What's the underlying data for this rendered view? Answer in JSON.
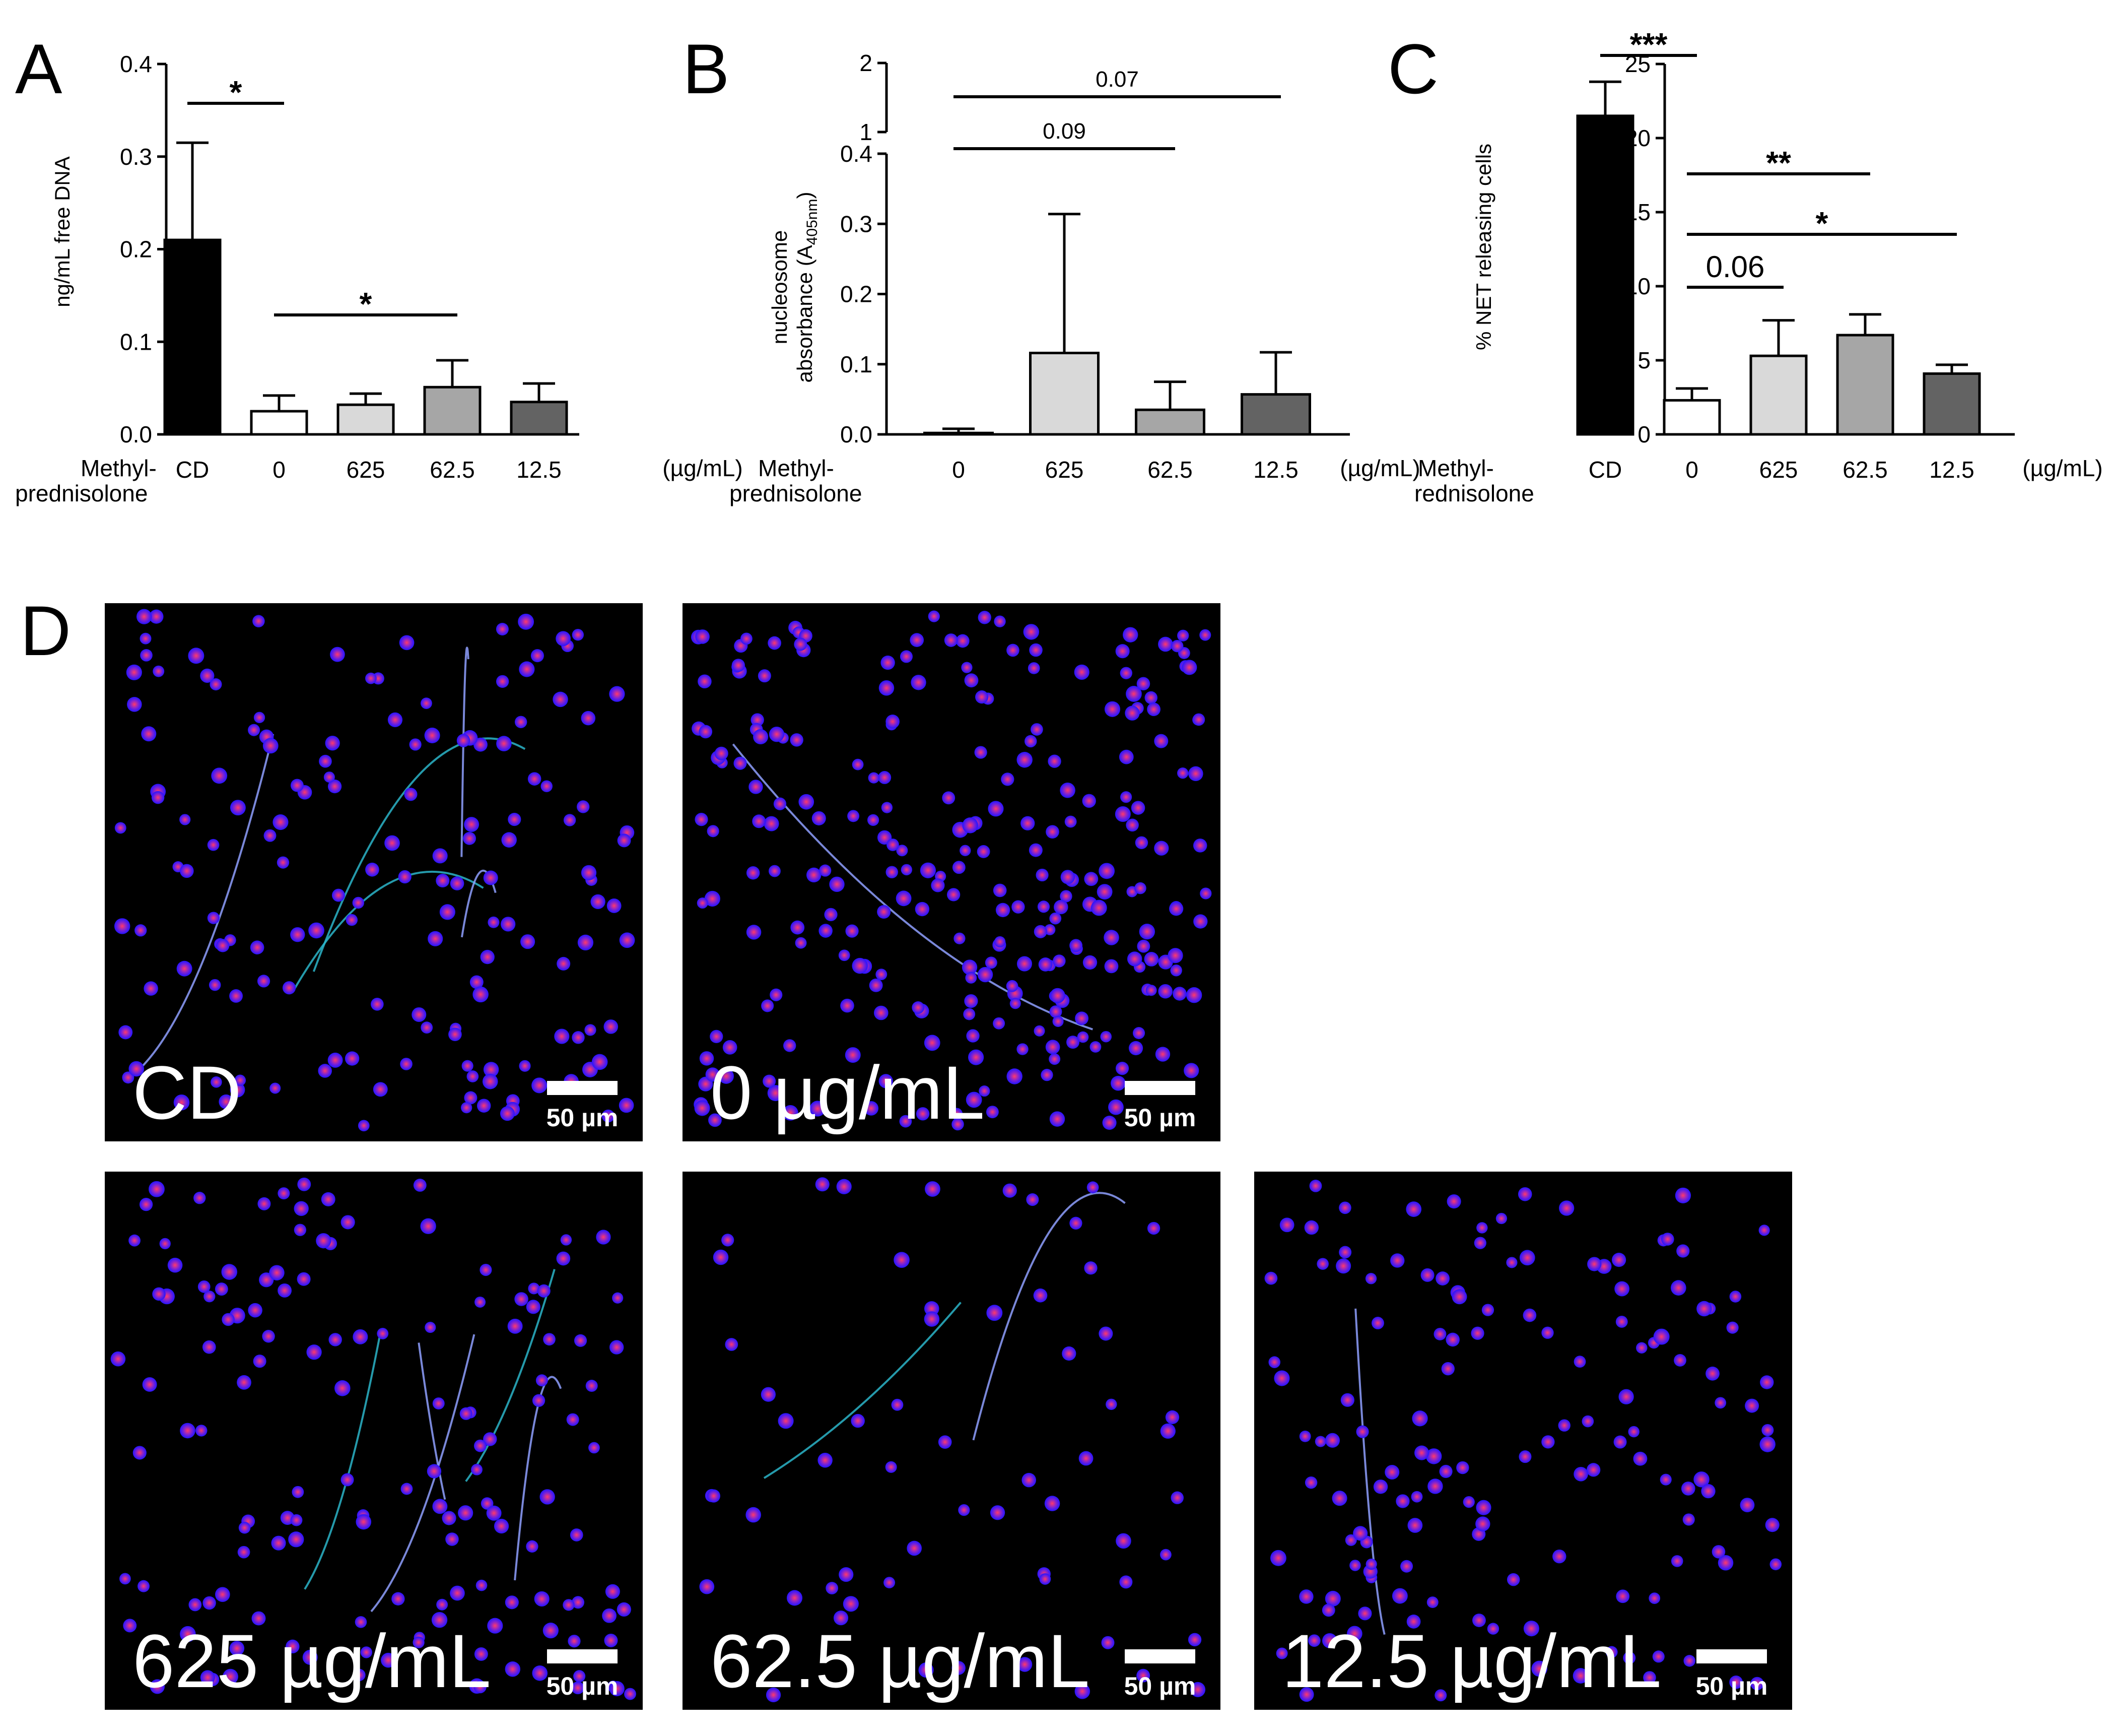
{
  "figure": {
    "panel_letters": [
      "A",
      "B",
      "C",
      "D"
    ],
    "row_label_line1": "Methyl-",
    "row_label_line2_ab": "prednisolone",
    "row_label_line2_c": "rednisolone",
    "unit_label": "(µg/mL)"
  },
  "colors": {
    "CD": "#000000",
    "0": "#ffffff",
    "625": "#d9d9d9",
    "62.5": "#a6a6a6",
    "12.5": "#636363"
  },
  "chart_data": [
    {
      "panel": "A",
      "type": "bar",
      "categories": [
        "CD",
        "0",
        "625",
        "62.5",
        "12.5"
      ],
      "values": [
        0.21,
        0.025,
        0.032,
        0.051,
        0.035
      ],
      "errors": [
        0.105,
        0.017,
        0.012,
        0.029,
        0.02
      ],
      "ylabel": "ng/mL free DNA",
      "ylim": [
        0,
        0.4
      ],
      "yticks": [
        "0.0",
        "0.1",
        "0.2",
        "0.3",
        "0.4"
      ],
      "annotations": [
        {
          "from": "CD",
          "to": "0",
          "label": "*"
        },
        {
          "from": "0",
          "to": "62.5",
          "label": "*"
        }
      ]
    },
    {
      "panel": "B",
      "type": "bar",
      "categories": [
        "0",
        "625",
        "62.5",
        "12.5"
      ],
      "values": [
        0.002,
        0.116,
        0.035,
        0.057
      ],
      "errors": [
        0.006,
        0.198,
        0.04,
        0.06
      ],
      "ylabel_line1": "nucleosome",
      "ylabel_line2": "absorbance (A",
      "ylabel_sub": "405nm",
      "ylabel_end": ")",
      "ylim": [
        0,
        0.4
      ],
      "y_break_upper": [
        1,
        2
      ],
      "yticks": [
        "0.0",
        "0.1",
        "0.2",
        "0.3",
        "0.4"
      ],
      "yticks_upper": [
        "1",
        "2"
      ],
      "annotations": [
        {
          "from": "0",
          "to": "62.5",
          "label": "0.09"
        },
        {
          "from": "0",
          "to": "12.5",
          "label": "0.07"
        }
      ]
    },
    {
      "panel": "C",
      "type": "bar",
      "categories": [
        "CD",
        "0",
        "625",
        "62.5",
        "12.5"
      ],
      "values": [
        21.5,
        2.3,
        5.3,
        6.7,
        4.1
      ],
      "errors": [
        2.3,
        0.8,
        2.4,
        1.4,
        0.6
      ],
      "ylabel": "% NET releasing cells",
      "ylim": [
        0,
        25
      ],
      "yticks": [
        "0",
        "5",
        "10",
        "15",
        "20",
        "25"
      ],
      "annotations": [
        {
          "from": "CD",
          "to": "0",
          "label": "***"
        },
        {
          "from": "0",
          "to": "62.5",
          "label": "**"
        },
        {
          "from": "0",
          "to": "12.5",
          "label": "*"
        },
        {
          "from": "0",
          "to": "625",
          "label": "0.06"
        }
      ]
    }
  ],
  "micrographs": [
    {
      "label": "CD",
      "scale": "50 µm"
    },
    {
      "label": "0 µg/mL",
      "scale": "50 µm"
    },
    {
      "label": "625 µg/mL",
      "scale": "50 µm"
    },
    {
      "label": "62.5 µg/mL",
      "scale": "50 µm"
    },
    {
      "label": "12.5 µg/mL",
      "scale": "50 µm"
    }
  ]
}
